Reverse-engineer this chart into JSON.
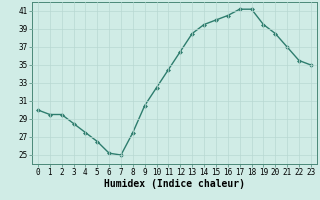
{
  "x": [
    0,
    1,
    2,
    3,
    4,
    5,
    6,
    7,
    8,
    9,
    10,
    11,
    12,
    13,
    14,
    15,
    16,
    17,
    18,
    19,
    20,
    21,
    22,
    23
  ],
  "y": [
    30.0,
    29.5,
    29.5,
    28.5,
    27.5,
    26.5,
    25.2,
    25.0,
    27.5,
    30.5,
    32.5,
    34.5,
    36.5,
    38.5,
    39.5,
    40.0,
    40.5,
    41.2,
    41.2,
    39.5,
    38.5,
    37.0,
    35.5,
    35.0
  ],
  "line_color": "#2e7d6e",
  "marker": "D",
  "marker_size": 2.0,
  "bg_color": "#d0ece6",
  "grid_color": "#b8d8d2",
  "xlabel": "Humidex (Indice chaleur)",
  "ylim": [
    24,
    42
  ],
  "yticks": [
    25,
    27,
    29,
    31,
    33,
    35,
    37,
    39,
    41
  ],
  "xlim": [
    -0.5,
    23.5
  ],
  "xticks": [
    0,
    1,
    2,
    3,
    4,
    5,
    6,
    7,
    8,
    9,
    10,
    11,
    12,
    13,
    14,
    15,
    16,
    17,
    18,
    19,
    20,
    21,
    22,
    23
  ],
  "tick_fontsize": 5.5,
  "xlabel_fontsize": 7.0,
  "linewidth": 1.0
}
